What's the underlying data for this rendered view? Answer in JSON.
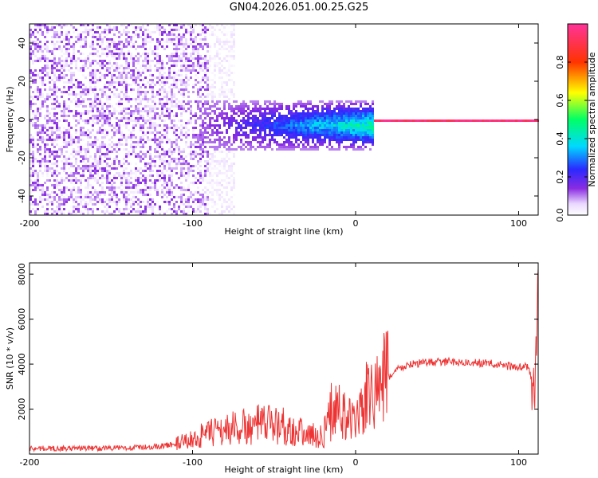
{
  "chart_data": [
    {
      "type": "heatmap",
      "title": "GN04.2026.051.00.25.G25",
      "xlabel": "Height of straight line (km)",
      "ylabel": "Frequency (Hz)",
      "xlim": [
        -200,
        112
      ],
      "ylim": [
        -50,
        50
      ],
      "xticks": [
        -200,
        -100,
        0,
        100
      ],
      "yticks": [
        -40,
        -20,
        0,
        20,
        40
      ],
      "grid": false,
      "colorbar": {
        "label": "Normalized spectral amplitude",
        "range": [
          0,
          1
        ],
        "ticks": [
          0.0,
          0.2,
          0.4,
          0.6,
          0.8
        ],
        "colormap": "rainbow: white, violet, blue, cyan, green, yellow, red, magenta"
      },
      "features": [
        {
          "x_range": [
            -200,
            -90
          ],
          "description_values": {
            "frequency_spread_hz": [
              -50,
              50
            ],
            "amplitude": [
              0.0,
              0.15
            ]
          }
        },
        {
          "x_range": [
            -90,
            -75
          ],
          "description_values": {
            "frequency_spread_hz": [
              -50,
              50
            ],
            "amplitude": [
              0.0,
              0.05
            ]
          }
        },
        {
          "x_range": [
            -100,
            10
          ],
          "description_values": {
            "frequency_spread_hz": [
              -15,
              10
            ],
            "amplitude": [
              0.1,
              0.55
            ]
          }
        },
        {
          "x_range": [
            10,
            112
          ],
          "description_values": {
            "frequency_spread_hz": [
              -1,
              1
            ],
            "amplitude": [
              0.8,
              1.0
            ]
          }
        }
      ]
    },
    {
      "type": "line",
      "title": "",
      "xlabel": "Height of straight line (km)",
      "ylabel": "SNR (10 * v/v)",
      "xlim": [
        -200,
        112
      ],
      "ylim": [
        0,
        8500
      ],
      "xticks": [
        -200,
        -100,
        0,
        100
      ],
      "yticks": [
        2000,
        4000,
        6000,
        8000
      ],
      "grid": false,
      "series": [
        {
          "color": "#ee3333",
          "x": [
            -200,
            -180,
            -160,
            -140,
            -130,
            -120,
            -110,
            -100,
            -95,
            -90,
            -85,
            -80,
            -75,
            -70,
            -65,
            -60,
            -55,
            -50,
            -45,
            -40,
            -35,
            -30,
            -25,
            -20,
            -18,
            -15,
            -12,
            -10,
            -8,
            -5,
            -2,
            0,
            2,
            5,
            8,
            10,
            12,
            15,
            18,
            20,
            25,
            30,
            35,
            40,
            50,
            60,
            70,
            80,
            90,
            100,
            105,
            108,
            110,
            112
          ],
          "y": [
            250,
            250,
            260,
            280,
            300,
            350,
            450,
            650,
            800,
            900,
            1000,
            1100,
            1150,
            1200,
            1150,
            1300,
            1300,
            1350,
            1300,
            1100,
            1000,
            900,
            800,
            800,
            1200,
            1900,
            2100,
            2000,
            1800,
            1600,
            1400,
            1300,
            1800,
            2200,
            2600,
            2700,
            2700,
            3000,
            3300,
            3400,
            3750,
            3900,
            4000,
            4050,
            4100,
            4100,
            4050,
            4050,
            3950,
            3850,
            3900,
            3400,
            2200,
            8300
          ]
        }
      ]
    }
  ]
}
